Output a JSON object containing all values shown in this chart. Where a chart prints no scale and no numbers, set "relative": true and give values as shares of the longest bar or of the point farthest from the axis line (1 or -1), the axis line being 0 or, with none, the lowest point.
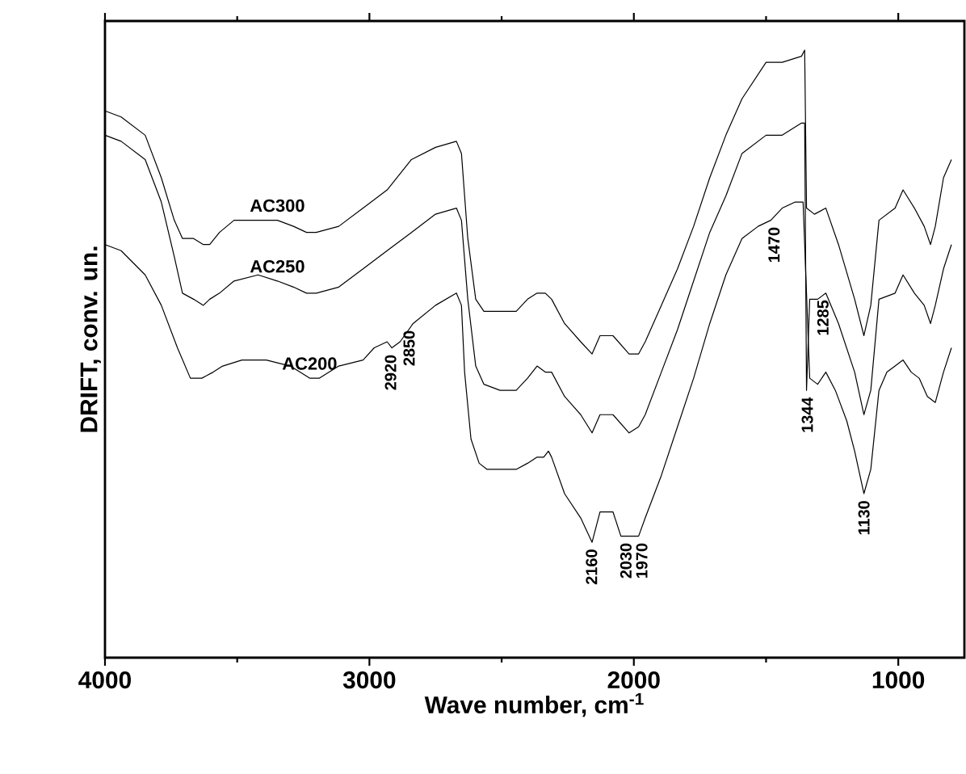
{
  "chart_data": {
    "type": "line",
    "relative": true,
    "xlabel": "Wave number, cm$^{-1}$",
    "ylabel": "DRIFT, conv. un.",
    "xlim": [
      4000,
      750
    ],
    "xticks": [
      4000,
      3000,
      2000,
      1000
    ],
    "legend": false,
    "grid": false,
    "marker": "none",
    "line_style": "solid",
    "series": [
      {
        "name": "AC300",
        "color": "#000000",
        "x": [
          4000,
          3939,
          3848,
          3787,
          3738,
          3707,
          3665,
          3628,
          3604,
          3567,
          3512,
          3421,
          3348,
          3287,
          3238,
          3201,
          3116,
          3024,
          2933,
          2841,
          2750,
          2671,
          2652,
          2628,
          2598,
          2567,
          2506,
          2445,
          2402,
          2366,
          2335,
          2311,
          2262,
          2201,
          2158,
          2128,
          2079,
          2018,
          1982,
          1957,
          1896,
          1835,
          1774,
          1713,
          1652,
          1591,
          1500,
          1439,
          1366,
          1354,
          1347,
          1317,
          1274,
          1226,
          1165,
          1130,
          1104,
          1073,
          1012,
          982,
          939,
          902,
          878,
          860,
          829,
          799
        ],
        "values": [
          0.9,
          0.89,
          0.86,
          0.79,
          0.72,
          0.69,
          0.69,
          0.68,
          0.68,
          0.7,
          0.72,
          0.72,
          0.72,
          0.71,
          0.7,
          0.7,
          0.71,
          0.74,
          0.77,
          0.82,
          0.84,
          0.85,
          0.83,
          0.69,
          0.59,
          0.57,
          0.57,
          0.57,
          0.59,
          0.6,
          0.6,
          0.59,
          0.55,
          0.52,
          0.5,
          0.53,
          0.53,
          0.5,
          0.5,
          0.52,
          0.58,
          0.64,
          0.71,
          0.79,
          0.86,
          0.92,
          0.98,
          0.98,
          0.99,
          1.0,
          0.74,
          0.73,
          0.74,
          0.68,
          0.59,
          0.53,
          0.58,
          0.72,
          0.74,
          0.77,
          0.74,
          0.71,
          0.68,
          0.71,
          0.79,
          0.82
        ]
      },
      {
        "name": "AC250",
        "color": "#000000",
        "x": [
          4000,
          3939,
          3848,
          3787,
          3738,
          3707,
          3665,
          3628,
          3604,
          3567,
          3512,
          3421,
          3348,
          3287,
          3238,
          3201,
          3116,
          3024,
          2933,
          2841,
          2750,
          2671,
          2652,
          2628,
          2598,
          2567,
          2506,
          2445,
          2402,
          2366,
          2335,
          2311,
          2262,
          2201,
          2158,
          2128,
          2079,
          2018,
          1982,
          1957,
          1896,
          1835,
          1774,
          1713,
          1652,
          1591,
          1500,
          1439,
          1366,
          1354,
          1347,
          1335,
          1305,
          1274,
          1226,
          1165,
          1130,
          1104,
          1073,
          1012,
          982,
          939,
          902,
          878,
          860,
          829,
          799
        ],
        "values": [
          0.86,
          0.85,
          0.82,
          0.75,
          0.66,
          0.6,
          0.59,
          0.58,
          0.59,
          0.6,
          0.62,
          0.63,
          0.62,
          0.61,
          0.6,
          0.6,
          0.61,
          0.64,
          0.67,
          0.7,
          0.73,
          0.74,
          0.72,
          0.59,
          0.48,
          0.45,
          0.44,
          0.44,
          0.46,
          0.48,
          0.47,
          0.47,
          0.43,
          0.4,
          0.37,
          0.4,
          0.4,
          0.37,
          0.38,
          0.4,
          0.47,
          0.54,
          0.62,
          0.7,
          0.76,
          0.83,
          0.86,
          0.86,
          0.88,
          0.88,
          0.44,
          0.59,
          0.59,
          0.6,
          0.55,
          0.47,
          0.4,
          0.44,
          0.59,
          0.6,
          0.63,
          0.6,
          0.58,
          0.55,
          0.58,
          0.64,
          0.68
        ]
      },
      {
        "name": "AC200",
        "color": "#000000",
        "x": [
          4000,
          3939,
          3848,
          3787,
          3726,
          3677,
          3634,
          3591,
          3555,
          3482,
          3390,
          3299,
          3226,
          3189,
          3116,
          3024,
          2982,
          2933,
          2915,
          2884,
          2835,
          2750,
          2671,
          2652,
          2640,
          2616,
          2585,
          2555,
          2506,
          2445,
          2402,
          2366,
          2341,
          2323,
          2311,
          2262,
          2201,
          2158,
          2128,
          2079,
          2049,
          2030,
          2000,
          1982,
          1957,
          1896,
          1835,
          1774,
          1713,
          1652,
          1591,
          1530,
          1482,
          1439,
          1390,
          1360,
          1335,
          1305,
          1274,
          1238,
          1195,
          1165,
          1130,
          1104,
          1073,
          1043,
          1012,
          982,
          951,
          921,
          890,
          860,
          829,
          799
        ],
        "values": [
          0.68,
          0.67,
          0.63,
          0.58,
          0.51,
          0.46,
          0.46,
          0.47,
          0.48,
          0.49,
          0.49,
          0.48,
          0.46,
          0.46,
          0.48,
          0.49,
          0.51,
          0.52,
          0.51,
          0.52,
          0.55,
          0.58,
          0.6,
          0.58,
          0.47,
          0.36,
          0.32,
          0.31,
          0.31,
          0.31,
          0.32,
          0.33,
          0.33,
          0.34,
          0.33,
          0.27,
          0.23,
          0.19,
          0.24,
          0.24,
          0.2,
          0.2,
          0.2,
          0.2,
          0.23,
          0.3,
          0.38,
          0.46,
          0.55,
          0.63,
          0.69,
          0.71,
          0.72,
          0.74,
          0.75,
          0.75,
          0.46,
          0.45,
          0.47,
          0.44,
          0.39,
          0.34,
          0.27,
          0.31,
          0.44,
          0.47,
          0.48,
          0.49,
          0.47,
          0.46,
          0.43,
          0.42,
          0.47,
          0.51
        ]
      }
    ],
    "annotations": [
      {
        "text": "2920",
        "x": 2920,
        "y": 0.51
      },
      {
        "text": "2850",
        "x": 2850,
        "y": 0.55
      },
      {
        "text": "2160",
        "x": 2160,
        "y": 0.19
      },
      {
        "text": "2030",
        "x": 2030,
        "y": 0.2
      },
      {
        "text": "1970",
        "x": 1970,
        "y": 0.2
      },
      {
        "text": "1470",
        "x": 1470,
        "y": 0.72
      },
      {
        "text": "1344",
        "x": 1344,
        "y": 0.44
      },
      {
        "text": "1285",
        "x": 1285,
        "y": 0.6
      },
      {
        "text": "1130",
        "x": 1130,
        "y": 0.27
      }
    ]
  }
}
